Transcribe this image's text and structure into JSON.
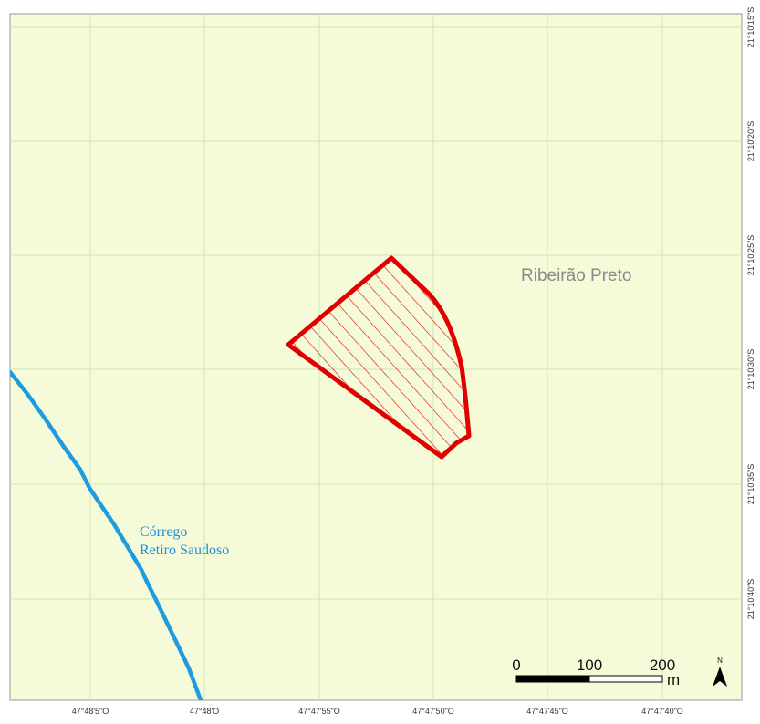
{
  "map": {
    "background_color": "#f5fbd9",
    "grid_color": "#cfe4b8",
    "polygon_color": "#e00000",
    "stream_color": "#1f9be0",
    "city_label": "Ribeirão Preto",
    "stream_label_line1": "Córrego",
    "stream_label_line2": "Retiro Saudoso",
    "longitude_ticks": [
      "47°48'5\"O",
      "47°48'O",
      "47°47'55\"O",
      "47°47'50\"O",
      "47°47'45\"O",
      "47°47'40\"O"
    ],
    "latitude_ticks": [
      "21°10'15\"S",
      "21°10'20\"S",
      "21°10'25\"S",
      "21°10'30\"S",
      "21°10'35\"S",
      "21°10'40\"S"
    ]
  },
  "scale_bar": {
    "labels": [
      "0",
      "100",
      "200"
    ],
    "unit": "m"
  },
  "north_arrow": {
    "label": "N",
    "icon": "north-arrow-icon"
  }
}
